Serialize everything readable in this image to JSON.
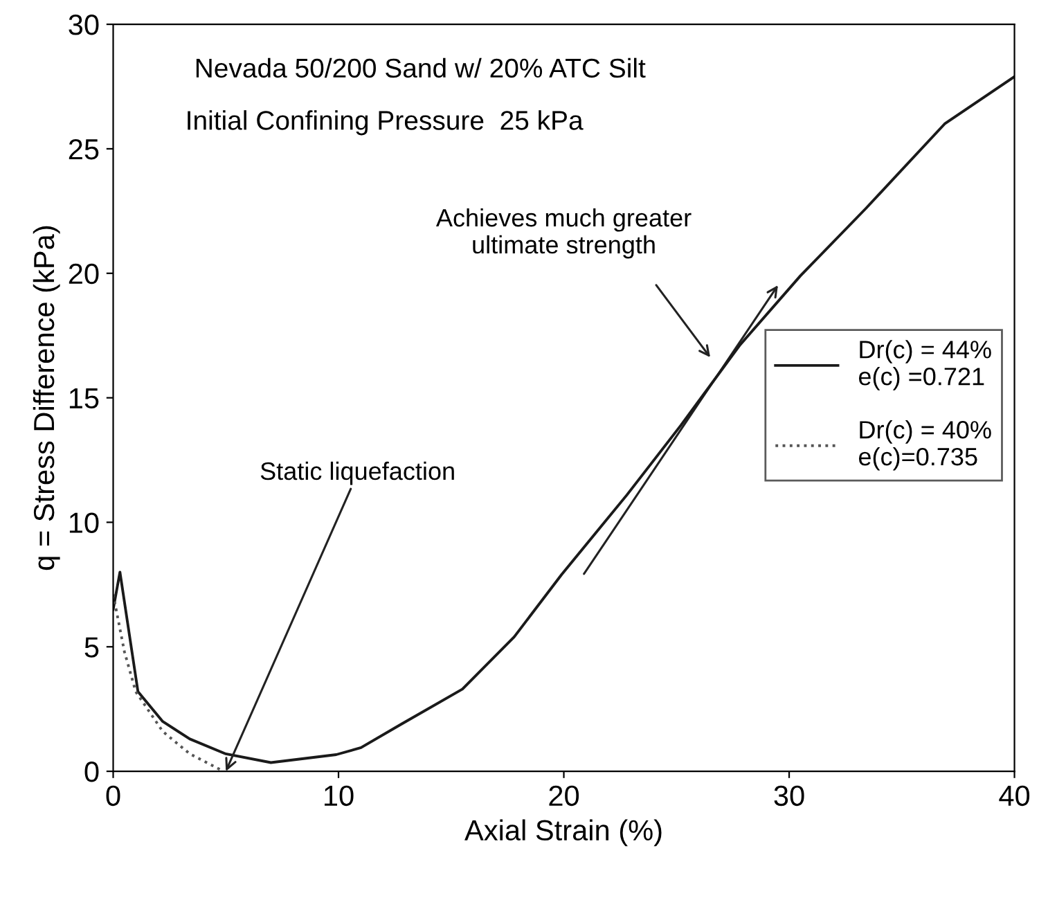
{
  "chart_data": {
    "type": "line",
    "title": "Nevada 50/200 Sand w/ 20% ATC Silt",
    "subtitle": "Initial Confining Pressure  25 kPa",
    "xlabel": "Axial Strain (%)",
    "ylabel": "q = Stress Difference (kPa)",
    "series": [
      {
        "name": "Dr(c) = 44%\ne(c) =0.721",
        "color": "#1a1a1a",
        "line_style": "solid",
        "x": [
          0,
          0.3,
          1.1,
          2.2,
          3.4,
          5,
          7,
          9.9,
          11,
          12.8,
          15.5,
          17.8,
          19.9,
          22.8,
          25.2,
          27.8,
          30.5,
          33.4,
          36.9,
          40
        ],
        "values": [
          6.5,
          8,
          3.2,
          2.0,
          1.3,
          0.7,
          0.35,
          0.67,
          0.95,
          1.9,
          3.3,
          5.4,
          7.9,
          11.1,
          13.9,
          17.1,
          19.9,
          22.6,
          26,
          27.9
        ]
      },
      {
        "name": "Dr(c) = 40%\ne(c)=0.735",
        "color": "#555555",
        "line_style": "dotted",
        "x": [
          0,
          0.5,
          1,
          2.2,
          3.4,
          4.9
        ],
        "values": [
          7.1,
          4.8,
          3.2,
          1.6,
          0.7,
          0
        ]
      }
    ],
    "xlim": [
      0,
      40
    ],
    "xticks": [
      0,
      10,
      20,
      30,
      40
    ],
    "ylim": [
      0,
      30
    ],
    "yticks": [
      0,
      5,
      10,
      15,
      20,
      25,
      30
    ],
    "grid": false,
    "legend": "right",
    "annotations": [
      {
        "text": "Static liquefaction",
        "x": 5,
        "y": 0
      },
      "Achieves much greater\nultimate strength"
    ]
  }
}
